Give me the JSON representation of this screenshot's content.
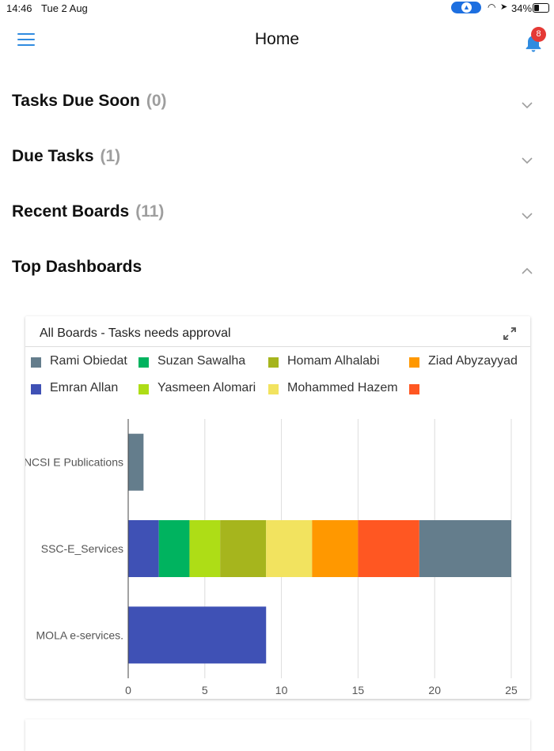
{
  "status_bar": {
    "time": "14:46",
    "date": "Tue 2 Aug",
    "battery": "34%"
  },
  "header": {
    "title": "Home",
    "notification_count": "8"
  },
  "sections": [
    {
      "title": "Tasks Due Soon",
      "count": "(0)",
      "expanded": false
    },
    {
      "title": "Due Tasks",
      "count": "(1)",
      "expanded": false
    },
    {
      "title": "Recent Boards",
      "count": "(11)",
      "expanded": false
    },
    {
      "title": "Top Dashboards",
      "count": "",
      "expanded": true
    }
  ],
  "colors": {
    "accent": "#2f8be0",
    "badge": "#e53935"
  },
  "chart_data": {
    "type": "bar",
    "orientation": "horizontal",
    "stacked": true,
    "title": "All Boards - Tasks needs approval",
    "categories": [
      "NCSI E Publications",
      "SSC-E_Services",
      "MOLA e-services."
    ],
    "xlim": [
      0,
      25
    ],
    "xticks": [
      0,
      5,
      10,
      15,
      20,
      25
    ],
    "grid": true,
    "legend_position": "top",
    "legend": [
      {
        "name": "Rami Obiedat",
        "color": "#647d8c"
      },
      {
        "name": "Suzan Sawalha",
        "color": "#00b35f"
      },
      {
        "name": "Homam Alhalabi",
        "color": "#a6b51d"
      },
      {
        "name": "Ziad Abyzayyad",
        "color": "#ff9800"
      },
      {
        "name": "Emran Allan",
        "color": "#3f51b5"
      },
      {
        "name": "Yasmeen Alomari",
        "color": "#aedd16"
      },
      {
        "name": "Mohammed Hazem",
        "color": "#f2e35f"
      },
      {
        "name": "",
        "color": "#ff5722"
      }
    ],
    "bars": [
      {
        "category": "NCSI E Publications",
        "segments": [
          {
            "series": "Rami Obiedat",
            "value": 1,
            "color": "#647d8c"
          }
        ]
      },
      {
        "category": "SSC-E_Services",
        "segments": [
          {
            "series": "Emran Allan",
            "value": 2,
            "color": "#3f51b5"
          },
          {
            "series": "Suzan Sawalha",
            "value": 2,
            "color": "#00b35f"
          },
          {
            "series": "Yasmeen Alomari",
            "value": 2,
            "color": "#aedd16"
          },
          {
            "series": "Homam Alhalabi",
            "value": 3,
            "color": "#a6b51d"
          },
          {
            "series": "Mohammed Hazem",
            "value": 3,
            "color": "#f2e35f"
          },
          {
            "series": "Ziad Abyzayyad",
            "value": 3,
            "color": "#ff9800"
          },
          {
            "series": "",
            "value": 4,
            "color": "#ff5722"
          },
          {
            "series": "Rami Obiedat",
            "value": 6,
            "color": "#647d8c"
          }
        ]
      },
      {
        "category": "MOLA e-services.",
        "segments": [
          {
            "series": "Emran Allan",
            "value": 9,
            "color": "#3f51b5"
          }
        ]
      }
    ]
  }
}
